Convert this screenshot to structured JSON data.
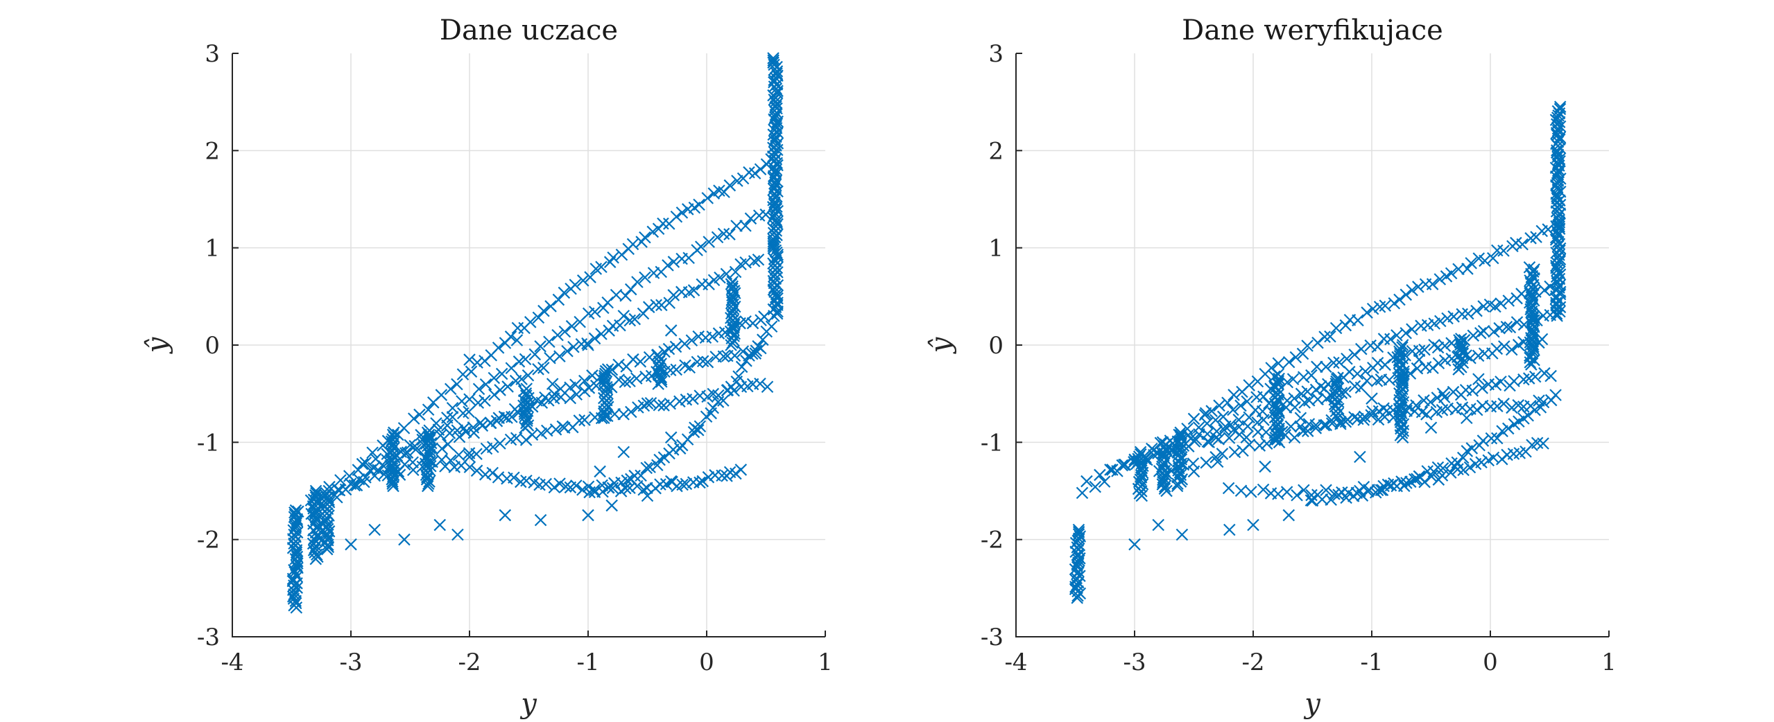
{
  "chart_data": [
    {
      "type": "scatter",
      "title": "Dane uczace",
      "xlabel": "y",
      "ylabel": "ŷ",
      "xlim": [
        -4,
        1
      ],
      "ylim": [
        -3,
        3
      ],
      "xticks": [
        -4,
        -3,
        -2,
        -1,
        0,
        1
      ],
      "yticks": [
        -3,
        -2,
        -1,
        0,
        1,
        2,
        3
      ],
      "xtick_labels": [
        "-4",
        "-3",
        "-2",
        "-1",
        "0",
        "1"
      ],
      "ytick_labels": [
        "-3",
        "-2",
        "-1",
        "0",
        "1",
        "2",
        "3"
      ],
      "grid": true,
      "marker": "x",
      "color": "#0072bd",
      "series": [
        {
          "values_note_free": true,
          "curves": [
            {
              "from": [
                -3.45,
                -1.7
              ],
              "to": [
                0.55,
                1.9
              ],
              "bend": 2.2,
              "n": 70
            },
            {
              "from": [
                -3.45,
                -1.8
              ],
              "to": [
                0.55,
                1.4
              ],
              "bend": 1.8,
              "n": 60
            },
            {
              "from": [
                -3.3,
                -1.6
              ],
              "to": [
                0.45,
                0.9
              ],
              "bend": 1.4,
              "n": 60
            },
            {
              "from": [
                -3.1,
                -1.5
              ],
              "to": [
                0.5,
                0.3
              ],
              "bend": 1.1,
              "n": 55
            },
            {
              "from": [
                -2.9,
                -1.2
              ],
              "to": [
                0.45,
                -0.05
              ],
              "bend": 0.8,
              "n": 55
            },
            {
              "from": [
                -2.7,
                -1.35
              ],
              "to": [
                0.5,
                -0.4
              ],
              "bend": 0.7,
              "n": 50
            },
            {
              "from": [
                -2.3,
                -1.2
              ],
              "to": [
                0.3,
                -1.3
              ],
              "bend": -1.3,
              "n": 50
            },
            {
              "from": [
                -1.0,
                -1.5
              ],
              "to": [
                0.55,
                0.2
              ],
              "bend": -1.6,
              "n": 40
            }
          ],
          "vertical_clusters": [
            {
              "x": -3.47,
              "y_from": -2.7,
              "y_to": -1.7
            },
            {
              "x": -3.3,
              "y_from": -2.2,
              "y_to": -1.5
            },
            {
              "x": -3.2,
              "y_from": -2.1,
              "y_to": -1.5
            },
            {
              "x": -2.65,
              "y_from": -1.45,
              "y_to": -0.9
            },
            {
              "x": -2.35,
              "y_from": -1.45,
              "y_to": -0.9
            },
            {
              "x": -1.52,
              "y_from": -0.85,
              "y_to": -0.45
            },
            {
              "x": -0.85,
              "y_from": -0.75,
              "y_to": -0.25
            },
            {
              "x": -0.4,
              "y_from": -0.4,
              "y_to": -0.1
            },
            {
              "x": 0.22,
              "y_from": 0.0,
              "y_to": 0.65
            },
            {
              "x": 0.58,
              "y_from": 0.3,
              "y_to": 2.95
            }
          ],
          "scattered": [
            [
              -3.0,
              -2.05
            ],
            [
              -2.8,
              -1.9
            ],
            [
              -2.55,
              -2.0
            ],
            [
              -2.25,
              -1.85
            ],
            [
              -2.1,
              -1.95
            ],
            [
              -1.7,
              -1.75
            ],
            [
              -1.4,
              -1.8
            ],
            [
              -1.0,
              -1.75
            ],
            [
              -0.8,
              -1.65
            ],
            [
              -0.5,
              -1.55
            ],
            [
              -0.3,
              -1.4
            ],
            [
              -0.9,
              -1.3
            ],
            [
              -1.2,
              -0.85
            ],
            [
              -2.0,
              -1.15
            ],
            [
              -2.6,
              -1.3
            ],
            [
              -0.7,
              -1.1
            ],
            [
              -0.3,
              -0.95
            ],
            [
              -0.1,
              -0.85
            ],
            [
              -0.5,
              -0.6
            ],
            [
              -1.3,
              -0.4
            ],
            [
              -1.0,
              0.0
            ],
            [
              -0.7,
              0.3
            ],
            [
              -0.3,
              0.15
            ],
            [
              -1.6,
              0.05
            ],
            [
              -2.0,
              -0.15
            ]
          ]
        }
      ]
    },
    {
      "type": "scatter",
      "title": "Dane weryfikujace",
      "xlabel": "y",
      "ylabel": "ŷ",
      "xlim": [
        -4,
        1
      ],
      "ylim": [
        -3,
        3
      ],
      "xticks": [
        -4,
        -3,
        -2,
        -1,
        0,
        1
      ],
      "yticks": [
        -3,
        -2,
        -1,
        0,
        1,
        2,
        3
      ],
      "xtick_labels": [
        "-4",
        "-3",
        "-2",
        "-1",
        "0",
        "1"
      ],
      "ytick_labels": [
        "-3",
        "-2",
        "-1",
        "0",
        "1",
        "2",
        "3"
      ],
      "grid": true,
      "marker": "x",
      "color": "#0072bd",
      "series": [
        {
          "curves": [
            {
              "from": [
                -3.45,
                -1.5
              ],
              "to": [
                0.55,
                1.2
              ],
              "bend": 1.9,
              "n": 65
            },
            {
              "from": [
                -3.4,
                -1.4
              ],
              "to": [
                0.5,
                0.6
              ],
              "bend": 1.5,
              "n": 60
            },
            {
              "from": [
                -3.2,
                -1.3
              ],
              "to": [
                0.5,
                0.3
              ],
              "bend": 1.2,
              "n": 60
            },
            {
              "from": [
                -3.0,
                -1.2
              ],
              "to": [
                0.45,
                0.05
              ],
              "bend": 0.9,
              "n": 55
            },
            {
              "from": [
                -2.8,
                -1.3
              ],
              "to": [
                0.5,
                -0.3
              ],
              "bend": 0.6,
              "n": 50
            },
            {
              "from": [
                -2.5,
                -1.0
              ],
              "to": [
                0.4,
                -0.6
              ],
              "bend": 0.4,
              "n": 45
            },
            {
              "from": [
                -2.2,
                -1.5
              ],
              "to": [
                0.45,
                -1.0
              ],
              "bend": -1.0,
              "n": 45
            },
            {
              "from": [
                -1.5,
                -1.6
              ],
              "to": [
                0.55,
                -0.5
              ],
              "bend": -1.0,
              "n": 40
            }
          ],
          "vertical_clusters": [
            {
              "x": -3.48,
              "y_from": -2.6,
              "y_to": -1.9
            },
            {
              "x": -2.95,
              "y_from": -1.55,
              "y_to": -1.1
            },
            {
              "x": -2.75,
              "y_from": -1.5,
              "y_to": -1.0
            },
            {
              "x": -2.62,
              "y_from": -1.45,
              "y_to": -0.9
            },
            {
              "x": -1.8,
              "y_from": -1.0,
              "y_to": -0.3
            },
            {
              "x": -1.3,
              "y_from": -0.75,
              "y_to": -0.35
            },
            {
              "x": -0.75,
              "y_from": -0.95,
              "y_to": 0.0
            },
            {
              "x": -0.25,
              "y_from": -0.25,
              "y_to": 0.05
            },
            {
              "x": 0.35,
              "y_from": -0.2,
              "y_to": 0.8
            },
            {
              "x": 0.57,
              "y_from": 0.3,
              "y_to": 2.45
            }
          ],
          "scattered": [
            [
              -3.0,
              -2.05
            ],
            [
              -2.8,
              -1.85
            ],
            [
              -2.6,
              -1.95
            ],
            [
              -2.2,
              -1.9
            ],
            [
              -2.0,
              -1.85
            ],
            [
              -1.7,
              -1.75
            ],
            [
              -1.5,
              -1.6
            ],
            [
              -1.1,
              -1.5
            ],
            [
              -0.9,
              -1.45
            ],
            [
              -0.6,
              -1.35
            ],
            [
              -0.3,
              -1.25
            ],
            [
              -1.1,
              -1.15
            ],
            [
              -2.3,
              -1.2
            ],
            [
              -2.5,
              -1.3
            ],
            [
              -1.9,
              -1.25
            ],
            [
              -0.5,
              -0.85
            ],
            [
              -0.2,
              -0.75
            ],
            [
              -0.4,
              -0.5
            ],
            [
              -1.0,
              -0.55
            ],
            [
              -1.4,
              -0.45
            ],
            [
              -0.6,
              -0.15
            ],
            [
              -0.1,
              -0.35
            ],
            [
              -1.6,
              -0.75
            ],
            [
              -2.4,
              -0.7
            ],
            [
              -0.9,
              -0.65
            ]
          ]
        }
      ]
    }
  ]
}
